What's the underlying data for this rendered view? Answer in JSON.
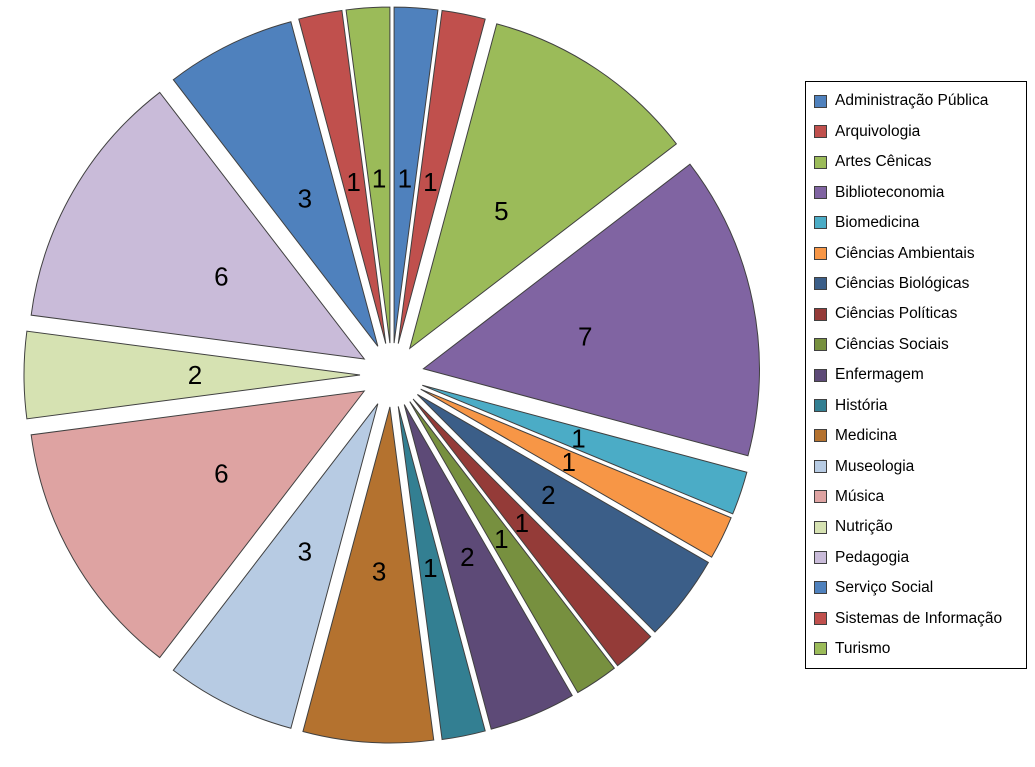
{
  "chart_data": {
    "type": "pie",
    "title": "",
    "categories": [
      "Administração Pública",
      "Arquivologia",
      "Artes Cênicas",
      "Biblioteconomia",
      "Biomedicina",
      "Ciências Ambientais",
      "Ciências Biológicas",
      "Ciências Políticas",
      "Ciências Sociais",
      "Enfermagem",
      "História",
      "Medicina",
      "Museologia",
      "Música",
      "Nutrição",
      "Pedagogia",
      "Serviço Social",
      "Sistemas de Informação",
      "Turismo"
    ],
    "values": [
      1,
      1,
      5,
      7,
      1,
      1,
      2,
      1,
      1,
      2,
      1,
      3,
      3,
      6,
      2,
      6,
      3,
      1,
      1
    ],
    "total": 48,
    "colors": [
      "#4F81BD",
      "#C0504D",
      "#9BBB59",
      "#8064A2",
      "#4BACC6",
      "#F79646",
      "#3B5E88",
      "#943B38",
      "#77903F",
      "#5D4A77",
      "#337F92",
      "#B4722F",
      "#B7CBE3",
      "#DEA3A2",
      "#D6E2B2",
      "#C9BBD9",
      "#4F81BD",
      "#C0504D",
      "#9BBB59"
    ],
    "exploded": true,
    "data_labels": "values",
    "label_color": "#000000",
    "slice_border_color": "#404040",
    "legend_position": "right",
    "legend_border_color": "#000000",
    "legend_text_color": "#000000",
    "background_color": "#FFFFFF"
  }
}
